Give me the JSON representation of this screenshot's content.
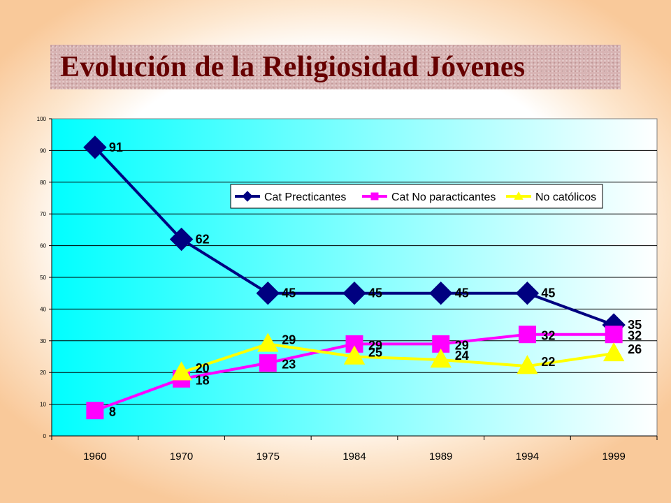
{
  "title": "Evolución de la Religiosidad Jóvenes",
  "chart_data": {
    "type": "line",
    "categories": [
      "1960",
      "1970",
      "1975",
      "1984",
      "1989",
      "1994",
      "1999"
    ],
    "ylim": [
      0,
      100
    ],
    "yticks": [
      0,
      10,
      20,
      30,
      40,
      50,
      60,
      70,
      80,
      90,
      100
    ],
    "grid": true,
    "legend": "top-right",
    "series": [
      {
        "name": "Cat Precticantes",
        "values": [
          91,
          62,
          45,
          45,
          45,
          45,
          35
        ],
        "color": "#000080",
        "marker": "diamond"
      },
      {
        "name": "Cat No paracticantes",
        "values": [
          8,
          18,
          23,
          29,
          29,
          32,
          32
        ],
        "color": "#ff00ff",
        "marker": "square"
      },
      {
        "name": "No católicos",
        "values": [
          null,
          20,
          29,
          25,
          24,
          22,
          26
        ],
        "color": "#ffff00",
        "marker": "triangle"
      }
    ],
    "plot_gradient": [
      "#00ffff",
      "#ffffff"
    ]
  }
}
